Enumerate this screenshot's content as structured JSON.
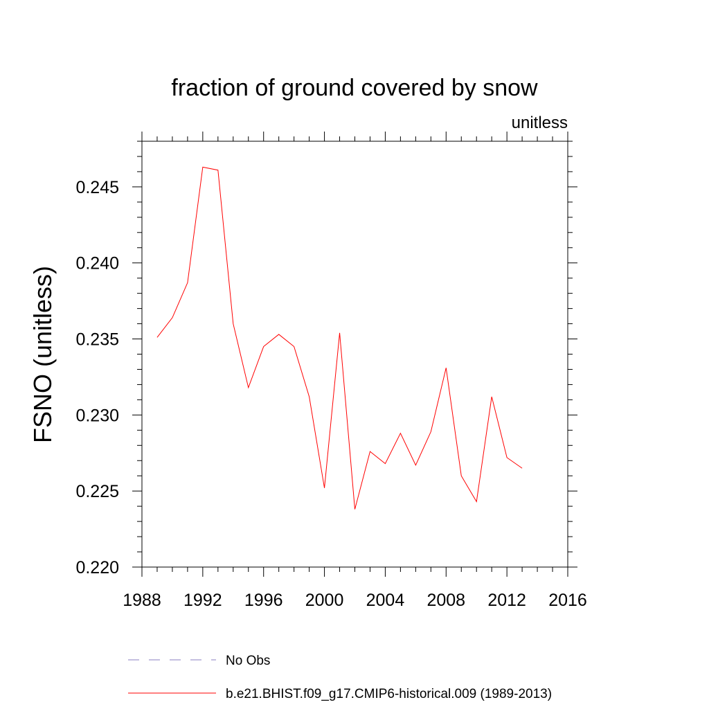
{
  "chart_data": {
    "type": "line",
    "title": "fraction of ground covered by snow",
    "units_label": "unitless",
    "xlabel": "",
    "ylabel": "FSNO  (unitless)",
    "xlim": [
      1988,
      2016
    ],
    "ylim": [
      0.22,
      0.248
    ],
    "x_major_ticks": [
      1988,
      1992,
      1996,
      2000,
      2004,
      2008,
      2012,
      2016
    ],
    "x_tick_labels": [
      "1988",
      "1992",
      "1996",
      "2000",
      "2004",
      "2008",
      "2012",
      "2016"
    ],
    "y_major_ticks": [
      0.22,
      0.225,
      0.23,
      0.235,
      0.24,
      0.245
    ],
    "y_tick_labels": [
      "0.220",
      "0.225",
      "0.230",
      "0.235",
      "0.240",
      "0.245"
    ],
    "series": [
      {
        "name": "b.e21.BHIST.f09_g17.CMIP6-historical.009 (1989-2013)",
        "color": "#ff0000",
        "dash": "solid",
        "x": [
          1989,
          1990,
          1991,
          1992,
          1993,
          1994,
          1995,
          1996,
          1997,
          1998,
          1999,
          2000,
          2001,
          2002,
          2003,
          2004,
          2005,
          2006,
          2007,
          2008,
          2009,
          2010,
          2011,
          2012,
          2013
        ],
        "y": [
          0.2351,
          0.2364,
          0.2387,
          0.2463,
          0.2461,
          0.236,
          0.2318,
          0.2345,
          0.2353,
          0.2345,
          0.2312,
          0.2252,
          0.2354,
          0.2238,
          0.2276,
          0.2268,
          0.2288,
          0.2267,
          0.2289,
          0.2331,
          0.226,
          0.2243,
          0.2312,
          0.2272,
          0.2265
        ]
      }
    ],
    "legend": [
      {
        "label": "No Obs",
        "color": "#8a7fc2",
        "dash": "dashed"
      },
      {
        "label": "b.e21.BHIST.f09_g17.CMIP6-historical.009 (1989-2013)",
        "color": "#ff0000",
        "dash": "solid"
      }
    ]
  }
}
